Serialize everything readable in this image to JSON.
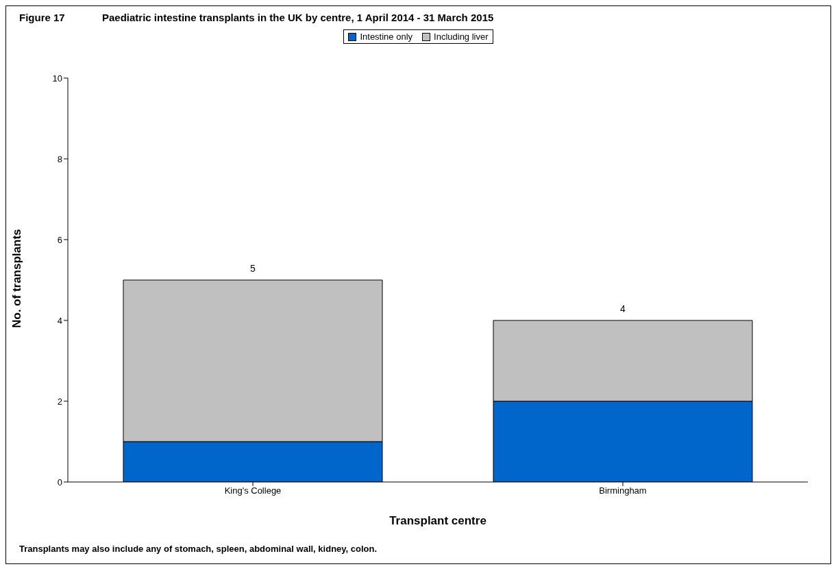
{
  "chart_data": {
    "type": "bar",
    "title": "Figure 17",
    "subtitle": "Paediatric intestine transplants in the UK by centre, 1 April 2014 - 31 March 2015",
    "xlabel": "Transplant centre",
    "ylabel": "No. of transplants",
    "categories": [
      "King's College",
      "Birmingham"
    ],
    "series": [
      {
        "name": "Intestine only",
        "color": "#0066cc",
        "values": [
          1,
          2
        ]
      },
      {
        "name": "Including liver",
        "color": "#c0c0c0",
        "values": [
          4,
          2
        ]
      }
    ],
    "stacked": true,
    "totals": [
      "5",
      "4"
    ],
    "ylim": [
      0,
      10
    ],
    "yticks": [
      0,
      2,
      4,
      6,
      8,
      10
    ],
    "grid": false,
    "legend": "top",
    "annotations": [
      "Transplants may also include any of stomach, spleen, abdominal wall, kidney, colon."
    ]
  }
}
